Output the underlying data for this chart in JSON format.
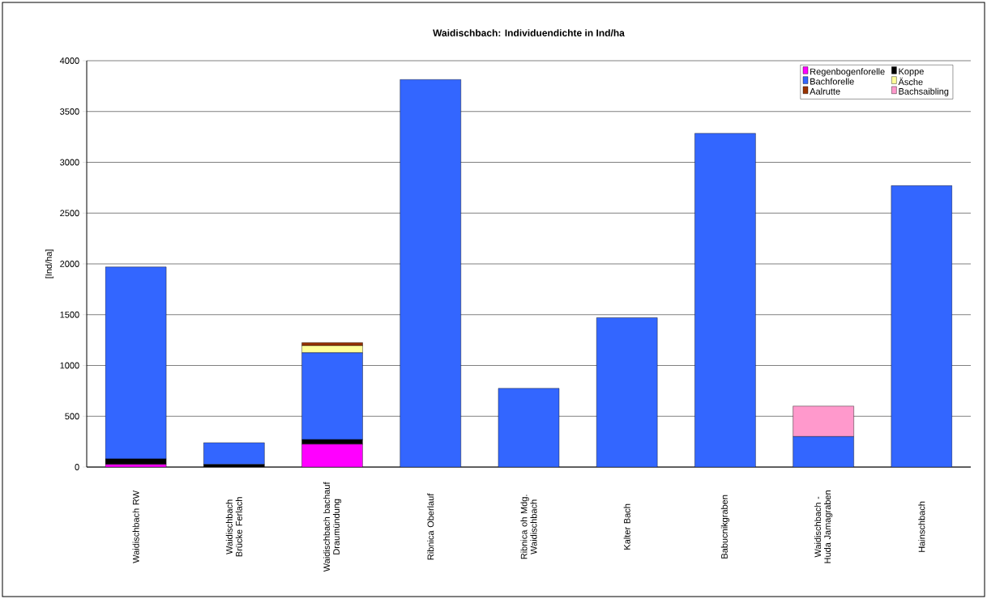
{
  "chart_data": {
    "type": "bar",
    "title": "Waidischbach: Individuendichte in Ind/ha",
    "ylabel": "[Ind/ha]",
    "categories": [
      "Waidischbach RW",
      "Waidischbach Brücke Ferlach",
      "Waidischbach bachauf Draumündung",
      "Ribnica Oberlauf",
      "Ribnica oh Mdg. Waidischbach",
      "Kalter Bach",
      "Babucnikgraben",
      "Waidischbach - Huda Jamagraben",
      "Hainschbach"
    ],
    "stacked": true,
    "series": [
      {
        "name": "Regenbogenforelle",
        "color": "#ff00ff",
        "values": [
          25,
          0,
          225,
          0,
          0,
          0,
          0,
          0,
          0
        ]
      },
      {
        "name": "Koppe",
        "color": "#000000",
        "values": [
          55,
          25,
          45,
          0,
          0,
          0,
          0,
          0,
          0
        ]
      },
      {
        "name": "Bachforelle",
        "color": "#3366ff",
        "values": [
          1890,
          215,
          855,
          3815,
          775,
          1470,
          3285,
          300,
          2770
        ]
      },
      {
        "name": "Äsche",
        "color": "#ffff99",
        "values": [
          0,
          0,
          70,
          0,
          0,
          0,
          0,
          0,
          0
        ]
      },
      {
        "name": "Aalrutte",
        "color": "#993300",
        "values": [
          0,
          0,
          30,
          0,
          0,
          0,
          0,
          0,
          0
        ]
      },
      {
        "name": "Bachsaibling",
        "color": "#ff99cc",
        "values": [
          0,
          0,
          0,
          0,
          0,
          0,
          0,
          300,
          0
        ]
      }
    ],
    "ylim": [
      0,
      4000
    ],
    "yticks": [
      0,
      500,
      1000,
      1500,
      2000,
      2500,
      3000,
      3500,
      4000
    ],
    "grid": "y",
    "legend": "top right"
  }
}
